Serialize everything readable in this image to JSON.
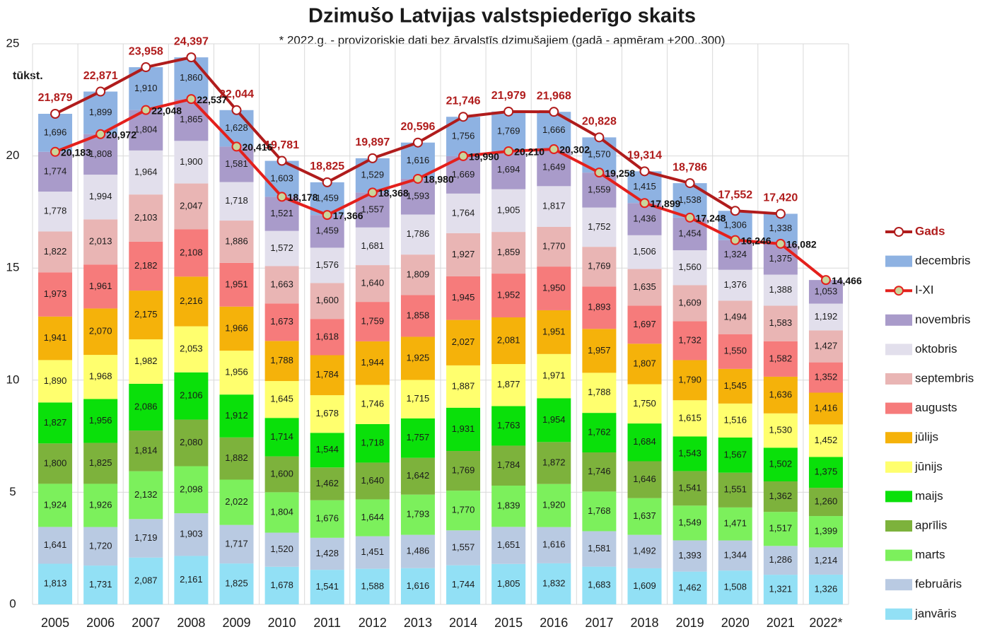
{
  "chart_data": {
    "type": "bar",
    "title": "Dzimušo Latvijas valstspiederīgo skaits",
    "subtitle": "* 2022.g. - provizoriskie dati bez ārvalstīs dzimušajiem (gadā - apmēram +200..300)",
    "y_label": "tūkst.",
    "categories": [
      "2005",
      "2006",
      "2007",
      "2008",
      "2009",
      "2010",
      "2011",
      "2012",
      "2013",
      "2014",
      "2015",
      "2016",
      "2017",
      "2018",
      "2019",
      "2020",
      "2021",
      "2022*"
    ],
    "ylim": [
      0,
      25
    ],
    "yticks": [
      0,
      5,
      10,
      15,
      20,
      25
    ],
    "grid": true,
    "legend": "right",
    "series": [
      {
        "name": "Gads",
        "type": "line",
        "color": "#b01c1c",
        "marker_fill": "#ffffff",
        "values": [
          21.879,
          22.871,
          23.958,
          24.397,
          22.044,
          19.781,
          18.825,
          19.897,
          20.596,
          21.746,
          21.979,
          21.968,
          20.828,
          19.314,
          18.786,
          17.552,
          17.42,
          null
        ],
        "value_labels": [
          "21,879",
          "22,871",
          "23,958",
          "24,397",
          "22,044",
          "19,781",
          "18,825",
          "19,897",
          "20,596",
          "21,746",
          "21,979",
          "21,968",
          "20,828",
          "19,314",
          "18,786",
          "17,552",
          "17,420",
          null
        ]
      },
      {
        "name": "decembris",
        "type": "bar",
        "color": "#8eb2e2",
        "values": [
          1.696,
          1.899,
          1.91,
          1.86,
          1.628,
          1.603,
          1.459,
          1.529,
          1.616,
          1.756,
          1.769,
          1.666,
          1.57,
          1.415,
          1.538,
          1.306,
          1.338,
          null
        ],
        "value_labels": [
          "1,696",
          "1,899",
          "1,910",
          "1,860",
          "1,628",
          "1,603",
          "1,459",
          "1,529",
          "1,616",
          "1,756",
          "1,769",
          "1,666",
          "1,570",
          "1,415",
          "1,538",
          "1,306",
          "1,338",
          null
        ]
      },
      {
        "name": "I-XI",
        "type": "line",
        "color": "#e4201c",
        "marker_fill": "#c9d69c",
        "values": [
          20.183,
          20.972,
          22.048,
          22.537,
          20.416,
          18.178,
          17.366,
          18.368,
          18.98,
          19.99,
          20.21,
          20.302,
          19.258,
          17.899,
          17.248,
          16.246,
          16.082,
          14.466
        ],
        "value_labels": [
          "20,183",
          "20,972",
          "22,048",
          "22,537",
          "20,416",
          "18,178",
          "17,366",
          "18,368",
          "18,980",
          "19,990",
          "20,210",
          "20,302",
          "19,258",
          "17,899",
          "17,248",
          "16,246",
          "16,082",
          "14,466"
        ]
      },
      {
        "name": "novembris",
        "type": "bar",
        "color": "#a99bca",
        "values": [
          1.774,
          1.808,
          1.804,
          1.865,
          1.581,
          1.521,
          1.459,
          1.557,
          1.593,
          1.669,
          1.694,
          1.649,
          1.559,
          1.436,
          1.454,
          1.324,
          1.375,
          1.053
        ],
        "value_labels": [
          "1,774",
          "1,808",
          "1,804",
          "1,865",
          "1,581",
          "1,521",
          "1,459",
          "1,557",
          "1,593",
          "1,669",
          "1,694",
          "1,649",
          "1,559",
          "1,436",
          "1,454",
          "1,324",
          "1,375",
          "1,053"
        ]
      },
      {
        "name": "oktobris",
        "type": "bar",
        "color": "#e2dfec",
        "values": [
          1.778,
          1.994,
          1.964,
          1.9,
          1.718,
          1.572,
          1.576,
          1.681,
          1.786,
          1.764,
          1.905,
          1.817,
          1.752,
          1.506,
          1.56,
          1.376,
          1.388,
          1.192
        ],
        "value_labels": [
          "1,778",
          "1,994",
          "1,964",
          "1,900",
          "1,718",
          "1,572",
          "1,576",
          "1,681",
          "1,786",
          "1,764",
          "1,905",
          "1,817",
          "1,752",
          "1,506",
          "1,560",
          "1,376",
          "1,388",
          "1,192"
        ]
      },
      {
        "name": "septembris",
        "type": "bar",
        "color": "#e9b5b4",
        "values": [
          1.822,
          2.013,
          2.103,
          2.047,
          1.886,
          1.663,
          1.6,
          1.64,
          1.809,
          1.927,
          1.859,
          1.77,
          1.769,
          1.635,
          1.609,
          1.494,
          1.583,
          1.427
        ],
        "value_labels": [
          "1,822",
          "2,013",
          "2,103",
          "2,047",
          "1,886",
          "1,663",
          "1,600",
          "1,640",
          "1,809",
          "1,927",
          "1,859",
          "1,770",
          "1,769",
          "1,635",
          "1,609",
          "1,494",
          "1,583",
          "1,427"
        ]
      },
      {
        "name": "augusts",
        "type": "bar",
        "color": "#f67b7b",
        "values": [
          1.973,
          1.961,
          2.182,
          2.108,
          1.951,
          1.673,
          1.618,
          1.759,
          1.858,
          1.945,
          1.952,
          1.95,
          1.893,
          1.697,
          1.732,
          1.55,
          1.582,
          1.352
        ],
        "value_labels": [
          "1,973",
          "1,961",
          "2,182",
          "2,108",
          "1,951",
          "1,673",
          "1,618",
          "1,759",
          "1,858",
          "1,945",
          "1,952",
          "1,950",
          "1,893",
          "1,697",
          "1,732",
          "1,550",
          "1,582",
          "1,352"
        ]
      },
      {
        "name": "jūlijs",
        "type": "bar",
        "color": "#f5b20a",
        "values": [
          1.941,
          2.07,
          2.175,
          2.216,
          1.966,
          1.788,
          1.784,
          1.944,
          1.925,
          2.027,
          2.081,
          1.951,
          1.957,
          1.807,
          1.79,
          1.545,
          1.636,
          1.416
        ],
        "value_labels": [
          "1,941",
          "2,070",
          "2,175",
          "2,216",
          "1,966",
          "1,788",
          "1,784",
          "1,944",
          "1,925",
          "2,027",
          "2,081",
          "1,951",
          "1,957",
          "1,807",
          "1,790",
          "1,545",
          "1,636",
          "1,416"
        ]
      },
      {
        "name": "jūnijs",
        "type": "bar",
        "color": "#ffff6e",
        "values": [
          1.89,
          1.968,
          1.982,
          2.053,
          1.956,
          1.645,
          1.678,
          1.746,
          1.715,
          1.887,
          1.877,
          1.971,
          1.788,
          1.75,
          1.615,
          1.516,
          1.53,
          1.452
        ],
        "value_labels": [
          "1,890",
          "1,968",
          "1,982",
          "2,053",
          "1,956",
          "1,645",
          "1,678",
          "1,746",
          "1,715",
          "1,887",
          "1,877",
          "1,971",
          "1,788",
          "1,750",
          "1,615",
          "1,516",
          "1,530",
          "1,452"
        ]
      },
      {
        "name": "maijs",
        "type": "bar",
        "color": "#0ae00a",
        "values": [
          1.827,
          1.956,
          2.086,
          2.106,
          1.912,
          1.714,
          1.544,
          1.718,
          1.757,
          1.931,
          1.763,
          1.954,
          1.762,
          1.684,
          1.543,
          1.567,
          1.502,
          1.375
        ],
        "value_labels": [
          "1,827",
          "1,956",
          "2,086",
          "2,106",
          "1,912",
          "1,714",
          "1,544",
          "1,718",
          "1,757",
          "1,931",
          "1,763",
          "1,954",
          "1,762",
          "1,684",
          "1,543",
          "1,567",
          "1,502",
          "1,375"
        ]
      },
      {
        "name": "aprīlis",
        "type": "bar",
        "color": "#7db23c",
        "values": [
          1.8,
          1.825,
          1.814,
          2.08,
          1.882,
          1.6,
          1.462,
          1.64,
          1.642,
          1.769,
          1.784,
          1.872,
          1.746,
          1.646,
          1.541,
          1.551,
          1.362,
          1.26
        ],
        "value_labels": [
          "1,800",
          "1,825",
          "1,814",
          "2,080",
          "1,882",
          "1,600",
          "1,462",
          "1,640",
          "1,642",
          "1,769",
          "1,784",
          "1,872",
          "1,746",
          "1,646",
          "1,541",
          "1,551",
          "1,362",
          "1,260"
        ]
      },
      {
        "name": "marts",
        "type": "bar",
        "color": "#7cf05c",
        "values": [
          1.924,
          1.926,
          2.132,
          2.098,
          2.022,
          1.804,
          1.676,
          1.644,
          1.793,
          1.77,
          1.839,
          1.92,
          1.768,
          1.637,
          1.549,
          1.471,
          1.517,
          1.399
        ],
        "value_labels": [
          "1,924",
          "1,926",
          "2,132",
          "2,098",
          "2,022",
          "1,804",
          "1,676",
          "1,644",
          "1,793",
          "1,770",
          "1,839",
          "1,920",
          "1,768",
          "1,637",
          "1,549",
          "1,471",
          "1,517",
          "1,399"
        ]
      },
      {
        "name": "februāris",
        "type": "bar",
        "color": "#b9cae2",
        "values": [
          1.641,
          1.72,
          1.719,
          1.903,
          1.717,
          1.52,
          1.428,
          1.451,
          1.486,
          1.557,
          1.651,
          1.616,
          1.581,
          1.492,
          1.393,
          1.344,
          1.286,
          1.214
        ],
        "value_labels": [
          "1,641",
          "1,720",
          "1,719",
          "1,903",
          "1,717",
          "1,520",
          "1,428",
          "1,451",
          "1,486",
          "1,557",
          "1,651",
          "1,616",
          "1,581",
          "1,492",
          "1,393",
          "1,344",
          "1,286",
          "1,214"
        ]
      },
      {
        "name": "janvāris",
        "type": "bar",
        "color": "#92e0f5",
        "values": [
          1.813,
          1.731,
          2.087,
          2.161,
          1.825,
          1.678,
          1.541,
          1.588,
          1.616,
          1.744,
          1.805,
          1.832,
          1.683,
          1.609,
          1.462,
          1.508,
          1.321,
          1.326
        ],
        "value_labels": [
          "1,813",
          "1,731",
          "2,087",
          "2,161",
          "1,825",
          "1,678",
          "1,541",
          "1,588",
          "1,616",
          "1,744",
          "1,805",
          "1,832",
          "1,683",
          "1,609",
          "1,462",
          "1,508",
          "1,321",
          "1,326"
        ]
      }
    ]
  }
}
